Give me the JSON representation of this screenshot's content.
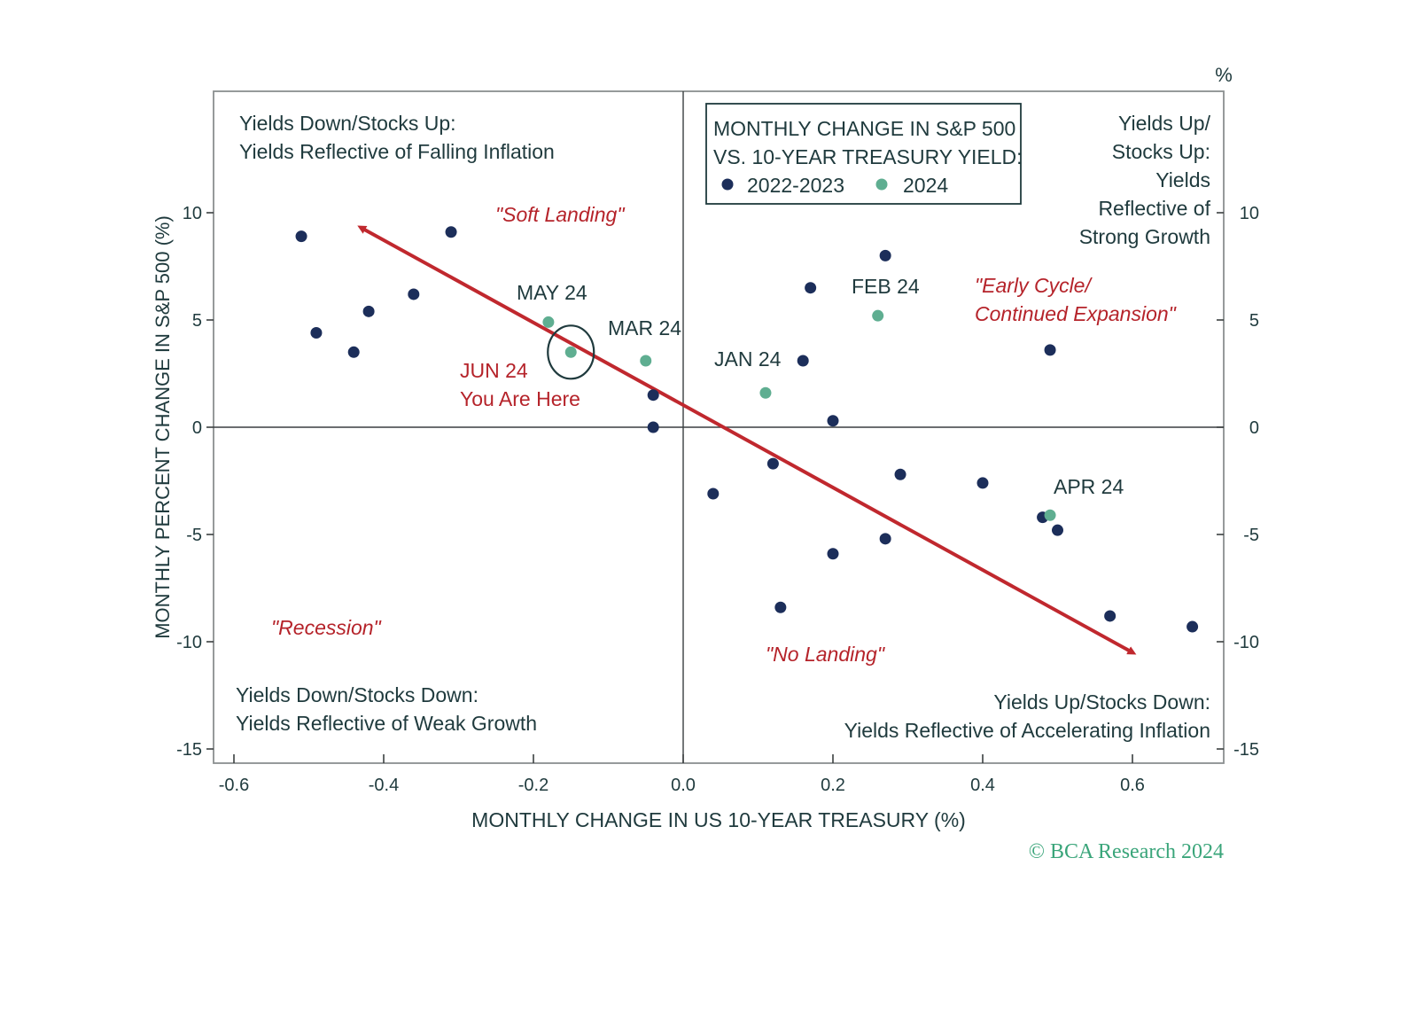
{
  "chart_data": {
    "type": "scatter",
    "title": "MONTHLY CHANGE IN S&P 500 VS. 10-YEAR TREASURY YIELD:",
    "title_lines": [
      "MONTHLY CHANGE IN S&P 500",
      "VS. 10-YEAR TREASURY YIELD:"
    ],
    "xlabel": "MONTHLY CHANGE IN US 10-YEAR TREASURY (%)",
    "ylabel": "MONTHLY PERCENT CHANGE IN S&P 500 (%)",
    "unit_label": "%",
    "xlim": [
      -0.62,
      0.73
    ],
    "ylim": [
      -15.5,
      15.5
    ],
    "x_ticks": [
      "-0.6",
      "-0.4",
      "-0.2",
      "0.0",
      "0.2",
      "0.4",
      "0.6"
    ],
    "x_tick_values": [
      -0.6,
      -0.4,
      -0.2,
      0.0,
      0.2,
      0.4,
      0.6
    ],
    "y_ticks": [
      "10",
      "5",
      "0",
      "-5",
      "-10",
      "-15"
    ],
    "y_tick_values": [
      10,
      5,
      0,
      -5,
      -10,
      -15
    ],
    "legend_position": "top-center",
    "grid": false,
    "colors": {
      "2022-2023": "#1c2e5a",
      "2024": "#5fae91",
      "arrow": "#c0282e",
      "frame": "#8a8f90"
    },
    "series": [
      {
        "name": "2022-2023",
        "points": [
          [
            -0.51,
            8.9
          ],
          [
            -0.49,
            4.4
          ],
          [
            -0.44,
            3.5
          ],
          [
            -0.42,
            5.4
          ],
          [
            -0.36,
            6.2
          ],
          [
            -0.31,
            9.1
          ],
          [
            -0.04,
            1.5
          ],
          [
            -0.04,
            0.0
          ],
          [
            0.04,
            -3.1
          ],
          [
            0.12,
            -1.7
          ],
          [
            0.13,
            -8.4
          ],
          [
            0.16,
            3.1
          ],
          [
            0.17,
            6.5
          ],
          [
            0.2,
            0.3
          ],
          [
            0.2,
            -5.9
          ],
          [
            0.27,
            8.0
          ],
          [
            0.27,
            -5.2
          ],
          [
            0.29,
            -2.2
          ],
          [
            0.4,
            -2.6
          ],
          [
            0.48,
            -4.2
          ],
          [
            0.49,
            3.6
          ],
          [
            0.5,
            -4.8
          ],
          [
            0.57,
            -8.8
          ],
          [
            0.68,
            -9.3
          ]
        ]
      },
      {
        "name": "2024",
        "points": [
          [
            0.11,
            1.6
          ],
          [
            0.26,
            5.2
          ],
          [
            -0.05,
            3.1
          ],
          [
            0.49,
            -4.1
          ],
          [
            -0.18,
            4.9
          ],
          [
            -0.15,
            3.5
          ]
        ]
      }
    ],
    "arrow": {
      "from": [
        -0.43,
        9.3
      ],
      "to": [
        0.6,
        -10.5
      ]
    },
    "point_labels": [
      "JAN 24",
      "FEB 24",
      "MAR 24",
      "APR 24",
      "MAY 24"
    ],
    "highlight": {
      "point": [
        -0.15,
        3.5
      ],
      "lines": [
        "JUN 24",
        "You Are Here"
      ]
    },
    "quadrant_labels": {
      "top_left": [
        "Yields Down/Stocks Up:",
        "Yields Reflective of Falling Inflation"
      ],
      "top_right": [
        "Yields Up/",
        "Stocks Up:",
        "Yields",
        "Reflective of",
        "Strong Growth"
      ],
      "bottom_left": [
        "Yields Down/Stocks Down:",
        "Yields Reflective of Weak Growth"
      ],
      "bottom_right": [
        "Yields Up/Stocks Down:",
        "Yields Reflective of Accelerating Inflation"
      ]
    },
    "scenario_labels": {
      "soft_landing": "\"Soft Landing\"",
      "early_cycle": [
        "\"Early Cycle/",
        "Continued Expansion\""
      ],
      "recession": "\"Recession\"",
      "no_landing": "\"No Landing\""
    },
    "credit": "© BCA Research 2024"
  }
}
